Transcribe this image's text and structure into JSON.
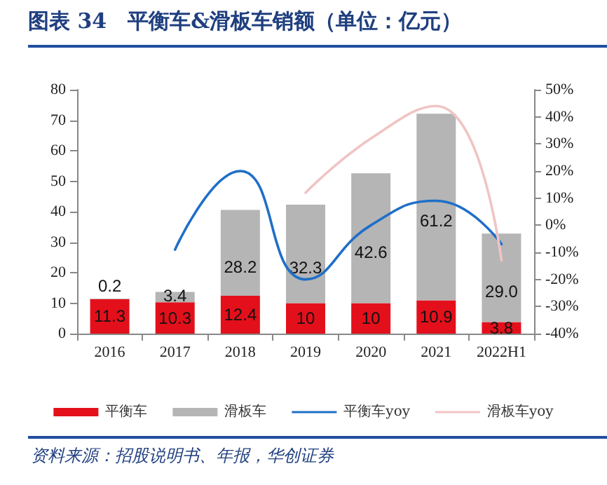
{
  "chart_data": {
    "type": "bar",
    "title": "图表 34　平衡车&滑板车销额（单位：亿元）",
    "annotations": [
      "资料来源：招股说明书、年报，华创证券"
    ],
    "categories": [
      "2016",
      "2017",
      "2018",
      "2019",
      "2020",
      "2021",
      "2022H1"
    ],
    "stacked": true,
    "series": [
      {
        "name": "平衡车",
        "color": "#e3101c",
        "values": [
          11.3,
          10.3,
          12.4,
          10,
          10,
          10.9,
          3.8
        ],
        "value_labels": [
          "11.3",
          "10.3",
          "12.4",
          "10",
          "10",
          "10.9",
          "3.8"
        ]
      },
      {
        "name": "滑板车",
        "color": "#b5b5b5",
        "values": [
          0.2,
          3.4,
          28.2,
          32.3,
          42.6,
          61.2,
          29.0
        ],
        "value_labels": [
          "0.2",
          "3.4",
          "28.2",
          "32.3",
          "42.6",
          "61.2",
          "29.0"
        ]
      },
      {
        "name": "平衡车yoy",
        "type": "line",
        "axis": "y2",
        "color": "#1f6fc8",
        "values": [
          null,
          -9,
          20,
          -20,
          0,
          9,
          -7
        ]
      },
      {
        "name": "滑板车yoy",
        "type": "line",
        "axis": "y2",
        "color": "#f0c4c4",
        "values": [
          null,
          null,
          null,
          12,
          32,
          44,
          -13
        ]
      }
    ],
    "ylim": [
      0,
      80
    ],
    "yticks": [
      0,
      10,
      20,
      30,
      40,
      50,
      60,
      70,
      80
    ],
    "y2lim": [
      -40,
      50
    ],
    "y2ticks": [
      {
        "value": -40,
        "label": "-40%"
      },
      {
        "value": -30,
        "label": "-30%"
      },
      {
        "value": -20,
        "label": "-20%"
      },
      {
        "value": -10,
        "label": "-10%"
      },
      {
        "value": 0,
        "label": "0%"
      },
      {
        "value": 10,
        "label": "10%"
      },
      {
        "value": 20,
        "label": "20%"
      },
      {
        "value": 30,
        "label": "30%"
      },
      {
        "value": 40,
        "label": "40%"
      },
      {
        "value": 50,
        "label": "50%"
      }
    ],
    "grid": false,
    "legend": "bottom",
    "marker": "none",
    "line_style": "solid"
  }
}
